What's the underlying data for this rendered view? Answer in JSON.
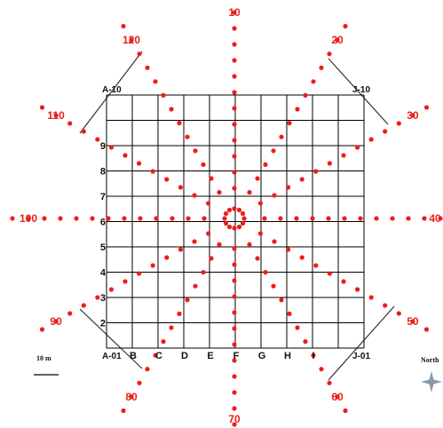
{
  "colors": {
    "point": "#ee1c1c",
    "grid": "#000000",
    "label_red": "#e8221c",
    "north_icon": "#8a9aa8"
  },
  "grid": {
    "cols": [
      "A",
      "B",
      "C",
      "D",
      "E",
      "F",
      "G",
      "H",
      "I",
      "J"
    ],
    "col_labels": [
      "B",
      "C",
      "D",
      "E",
      "F",
      "G",
      "H",
      "I"
    ],
    "rows": [
      "1",
      "2",
      "3",
      "4",
      "5",
      "6",
      "7",
      "8",
      "9",
      "10"
    ],
    "row_labels": [
      "2",
      "3",
      "4",
      "5",
      "6",
      "7",
      "8",
      "9"
    ],
    "corners": {
      "top_left": "A-10",
      "top_right": "J-10",
      "bottom_left": "A-01",
      "bottom_right": "J-01"
    }
  },
  "rays": [
    {
      "label": "10",
      "angle_deg": 0
    },
    {
      "label": "20",
      "angle_deg": 30
    },
    {
      "label": "30",
      "angle_deg": 60
    },
    {
      "label": "40",
      "angle_deg": 90
    },
    {
      "label": "50",
      "angle_deg": 120
    },
    {
      "label": "60",
      "angle_deg": 150
    },
    {
      "label": "70",
      "angle_deg": 180
    },
    {
      "label": "80",
      "angle_deg": 210
    },
    {
      "label": "90",
      "angle_deg": 240
    },
    {
      "label": "100",
      "angle_deg": 270
    },
    {
      "label": "110",
      "angle_deg": 300
    },
    {
      "label": "120",
      "angle_deg": 330
    }
  ],
  "scale_bar": {
    "label": "10 m"
  },
  "north": {
    "label": "North"
  }
}
